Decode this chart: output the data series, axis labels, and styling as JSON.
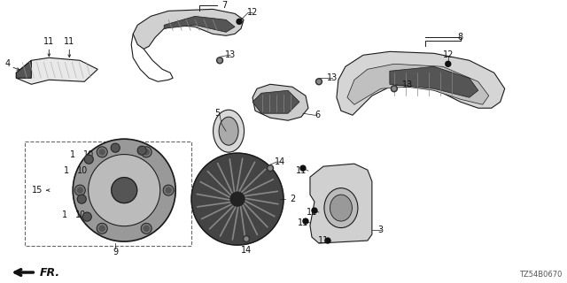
{
  "background_color": "#ffffff",
  "diagram_code": "TZ54B0670",
  "fr_label": "FR.",
  "figsize": [
    6.4,
    3.2
  ],
  "dpi": 100
}
